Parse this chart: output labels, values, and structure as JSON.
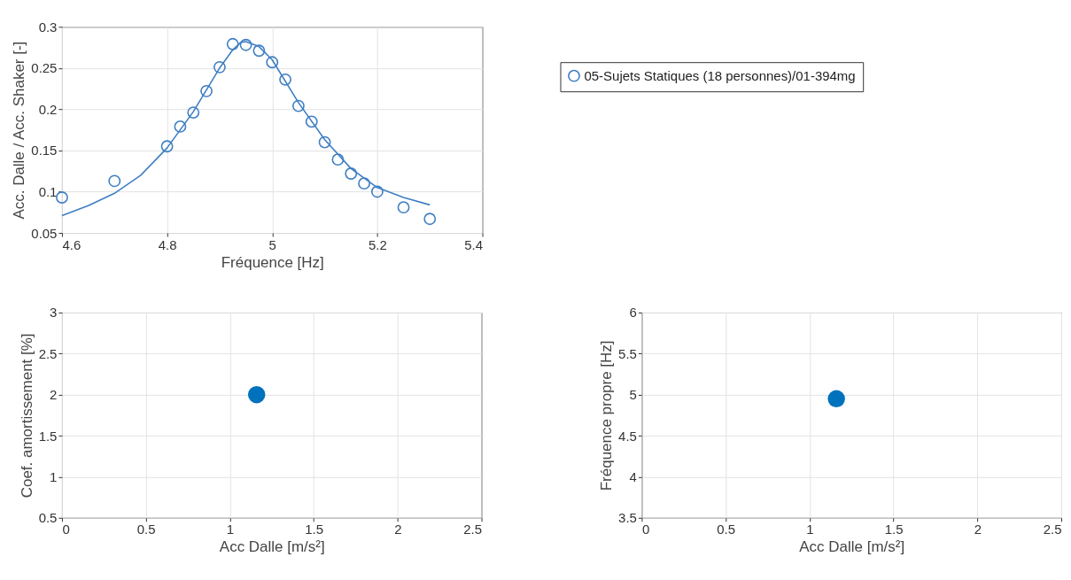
{
  "chart_data": [
    {
      "type": "scatter",
      "xlabel": "Fréquence [Hz]",
      "ylabel": "Acc. Dalle / Acc. Shaker [-]",
      "xlim": [
        4.6,
        5.4
      ],
      "xticks": [
        4.6,
        4.8,
        5,
        5.2,
        5.4
      ],
      "ylim": [
        0.05,
        0.3
      ],
      "yticks": [
        0.05,
        0.1,
        0.15,
        0.2,
        0.25,
        0.3
      ],
      "grid": true,
      "legend": "right",
      "series": [
        {
          "name": "05-Sujets Statiques (18 personnes)/01-394mg",
          "type": "scatter",
          "marker": "circle",
          "color": "#3f7fc4",
          "x": [
            4.6,
            4.7,
            4.8,
            4.825,
            4.85,
            4.875,
            4.9,
            4.925,
            4.95,
            4.975,
            5.0,
            5.025,
            5.05,
            5.075,
            5.1,
            5.125,
            5.15,
            5.175,
            5.2,
            5.25,
            5.3
          ],
          "values": [
            0.093,
            0.113,
            0.155,
            0.179,
            0.196,
            0.222,
            0.251,
            0.279,
            0.278,
            0.271,
            0.257,
            0.236,
            0.204,
            0.185,
            0.16,
            0.139,
            0.122,
            0.11,
            0.1,
            0.081,
            0.067
          ]
        },
        {
          "type": "line",
          "marker": "none",
          "color": "#3f7fc4",
          "x": [
            4.6,
            4.65,
            4.7,
            4.75,
            4.8,
            4.85,
            4.9,
            4.925,
            4.94,
            4.95,
            4.975,
            5.0,
            5.05,
            5.1,
            5.15,
            5.2,
            5.25,
            5.3
          ],
          "values": [
            0.071,
            0.083,
            0.098,
            0.12,
            0.153,
            0.197,
            0.25,
            0.272,
            0.281,
            0.282,
            0.276,
            0.26,
            0.208,
            0.163,
            0.128,
            0.105,
            0.093,
            0.084
          ]
        }
      ]
    },
    {
      "type": "scatter",
      "xlabel": "Acc Dalle [m/s²]",
      "ylabel": "Coef. amortissement [%]",
      "xlim": [
        0,
        2.5
      ],
      "xticks": [
        0,
        0.5,
        1,
        1.5,
        2,
        2.5
      ],
      "ylim": [
        0.5,
        3
      ],
      "yticks": [
        0.5,
        1,
        1.5,
        2,
        2.5,
        3
      ],
      "grid": true,
      "marker": "circle",
      "color": "#0072bd",
      "x": [
        1.16
      ],
      "values": [
        2.0
      ]
    },
    {
      "type": "scatter",
      "xlabel": "Acc Dalle [m/s²]",
      "ylabel": "Fréquence propre [Hz]",
      "xlim": [
        0,
        2.5
      ],
      "xticks": [
        0,
        0.5,
        1,
        1.5,
        2,
        2.5
      ],
      "ylim": [
        3.5,
        6
      ],
      "yticks": [
        3.5,
        4,
        4.5,
        5,
        5.5,
        6
      ],
      "grid": true,
      "marker": "circle",
      "color": "#0072bd",
      "x": [
        1.16
      ],
      "values": [
        4.95
      ]
    }
  ]
}
